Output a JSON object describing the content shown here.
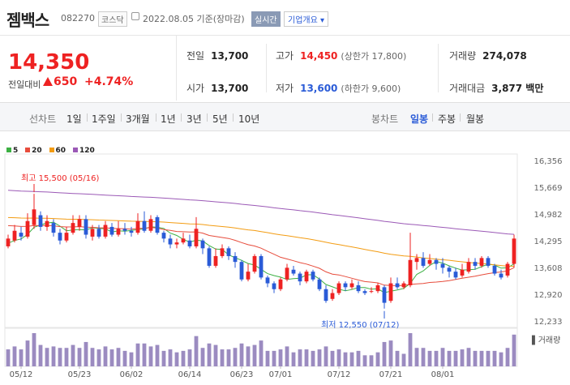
{
  "header": {
    "name": "젬백스",
    "code": "082270",
    "market": "코스닥",
    "date": "2022.08.05 기준(장마감)",
    "realtime": "실시간",
    "corp_info": "기업개요 ▾"
  },
  "price": {
    "current": "14,350",
    "change_label": "전일대비",
    "change": "650",
    "change_pct": "+4.74%"
  },
  "stats": {
    "prev_label": "전일",
    "prev": "13,700",
    "open_label": "시가",
    "open": "13,700",
    "high_label": "고가",
    "high": "14,450",
    "high_sub": "(상한가 17,800)",
    "low_label": "저가",
    "low": "13,600",
    "low_sub": "(하한가 9,600)",
    "volume_label": "거래량",
    "volume": "274,078",
    "amount_label": "거래대금",
    "amount": "3,877 백만"
  },
  "tabs": {
    "line_label": "선차트",
    "line": [
      "1일",
      "1주일",
      "3개월",
      "1년",
      "3년",
      "5년",
      "10년"
    ],
    "candle_label": "봉차트",
    "candle": [
      "일봉",
      "주봉",
      "월봉"
    ],
    "active_candle": "일봉"
  },
  "legend": [
    {
      "label": "5",
      "color": "#3cb043"
    },
    {
      "label": "20",
      "color": "#e74c3c"
    },
    {
      "label": "60",
      "color": "#f39c12"
    },
    {
      "label": "120",
      "color": "#9b59b6"
    }
  ],
  "chart_data": {
    "type": "candlestick",
    "y_ticks": [
      "16,356",
      "15,669",
      "14,982",
      "14,295",
      "13,608",
      "12,920",
      "12,233"
    ],
    "ylim": [
      12233,
      16356
    ],
    "x_ticks": [
      "05/12",
      "05/23",
      "06/02",
      "06/14",
      "06/23",
      "07/01",
      "07/12",
      "07/21",
      "08/01"
    ],
    "annotations": {
      "high": "최고 15,500 (05/16)",
      "low": "최저 12,550 (07/12)"
    },
    "volume_label": "거래량",
    "candles": [
      {
        "o": 14150,
        "c": 14350,
        "h": 14450,
        "l": 14100
      },
      {
        "o": 14300,
        "c": 14550,
        "h": 14700,
        "l": 14250
      },
      {
        "o": 14500,
        "c": 14400,
        "h": 14650,
        "l": 14300
      },
      {
        "o": 14400,
        "c": 14800,
        "h": 15000,
        "l": 14350
      },
      {
        "o": 14700,
        "c": 15100,
        "h": 15500,
        "l": 14600
      },
      {
        "o": 14950,
        "c": 14650,
        "h": 15050,
        "l": 14550
      },
      {
        "o": 14650,
        "c": 14800,
        "h": 14950,
        "l": 14550
      },
      {
        "o": 14750,
        "c": 14500,
        "h": 14850,
        "l": 14400
      },
      {
        "o": 14500,
        "c": 14300,
        "h": 14600,
        "l": 14200
      },
      {
        "o": 14300,
        "c": 14500,
        "h": 14650,
        "l": 14250
      },
      {
        "o": 14500,
        "c": 14750,
        "h": 14950,
        "l": 14450
      },
      {
        "o": 14650,
        "c": 14850,
        "h": 14950,
        "l": 14550
      },
      {
        "o": 14850,
        "c": 14450,
        "h": 14950,
        "l": 14350
      },
      {
        "o": 14400,
        "c": 14600,
        "h": 14700,
        "l": 14300
      },
      {
        "o": 14600,
        "c": 14400,
        "h": 14700,
        "l": 14350
      },
      {
        "o": 14400,
        "c": 14700,
        "h": 14800,
        "l": 14350
      },
      {
        "o": 14650,
        "c": 14450,
        "h": 14750,
        "l": 14400
      },
      {
        "o": 14450,
        "c": 14600,
        "h": 14800,
        "l": 14400
      },
      {
        "o": 14600,
        "c": 14550,
        "h": 14750,
        "l": 14450
      },
      {
        "o": 14550,
        "c": 14500,
        "h": 14650,
        "l": 14400
      },
      {
        "o": 14500,
        "c": 14800,
        "h": 15000,
        "l": 14450
      },
      {
        "o": 14800,
        "c": 14550,
        "h": 15050,
        "l": 14500
      },
      {
        "o": 14550,
        "c": 14850,
        "h": 14950,
        "l": 14500
      },
      {
        "o": 14900,
        "c": 14500,
        "h": 14950,
        "l": 14450
      },
      {
        "o": 14500,
        "c": 14350,
        "h": 14550,
        "l": 14250
      },
      {
        "o": 14350,
        "c": 14200,
        "h": 14450,
        "l": 14100
      },
      {
        "o": 14200,
        "c": 14250,
        "h": 14350,
        "l": 14100
      },
      {
        "o": 14250,
        "c": 14350,
        "h": 14500,
        "l": 14200
      },
      {
        "o": 14300,
        "c": 14150,
        "h": 14450,
        "l": 14100
      },
      {
        "o": 14150,
        "c": 14600,
        "h": 14900,
        "l": 14100
      },
      {
        "o": 14300,
        "c": 14100,
        "h": 14350,
        "l": 13950
      },
      {
        "o": 14100,
        "c": 13650,
        "h": 14150,
        "l": 13600
      },
      {
        "o": 13650,
        "c": 13900,
        "h": 14100,
        "l": 13600
      },
      {
        "o": 13900,
        "c": 14100,
        "h": 14200,
        "l": 13850
      },
      {
        "o": 14100,
        "c": 13900,
        "h": 14150,
        "l": 13800
      },
      {
        "o": 13900,
        "c": 13750,
        "h": 14000,
        "l": 13600
      },
      {
        "o": 13750,
        "c": 13300,
        "h": 13800,
        "l": 13250
      },
      {
        "o": 13300,
        "c": 13500,
        "h": 13700,
        "l": 13250
      },
      {
        "o": 13500,
        "c": 13900,
        "h": 13950,
        "l": 13450
      },
      {
        "o": 13900,
        "c": 13350,
        "h": 13950,
        "l": 13300
      },
      {
        "o": 13350,
        "c": 13200,
        "h": 13400,
        "l": 13100
      },
      {
        "o": 13200,
        "c": 13050,
        "h": 13250,
        "l": 12950
      },
      {
        "o": 13050,
        "c": 13300,
        "h": 13350,
        "l": 13000
      },
      {
        "o": 13300,
        "c": 13600,
        "h": 13700,
        "l": 13250
      },
      {
        "o": 13550,
        "c": 13450,
        "h": 13650,
        "l": 13400
      },
      {
        "o": 13450,
        "c": 13250,
        "h": 13500,
        "l": 13150
      },
      {
        "o": 13250,
        "c": 13500,
        "h": 13550,
        "l": 13200
      },
      {
        "o": 13500,
        "c": 13300,
        "h": 13550,
        "l": 13250
      },
      {
        "o": 13300,
        "c": 13050,
        "h": 13350,
        "l": 13000
      },
      {
        "o": 13050,
        "c": 12750,
        "h": 13150,
        "l": 12700
      },
      {
        "o": 12800,
        "c": 12950,
        "h": 13050,
        "l": 12750
      },
      {
        "o": 12950,
        "c": 13200,
        "h": 13250,
        "l": 12900
      },
      {
        "o": 13200,
        "c": 13100,
        "h": 13250,
        "l": 13000
      },
      {
        "o": 13100,
        "c": 13200,
        "h": 13300,
        "l": 13050
      },
      {
        "o": 13150,
        "c": 13000,
        "h": 13250,
        "l": 12950
      },
      {
        "o": 13000,
        "c": 12950,
        "h": 13050,
        "l": 12900
      },
      {
        "o": 13000,
        "c": 13000,
        "h": 13100,
        "l": 12950
      },
      {
        "o": 13000,
        "c": 13150,
        "h": 13200,
        "l": 12950
      },
      {
        "o": 13100,
        "c": 12700,
        "h": 13150,
        "l": 12550
      },
      {
        "o": 12750,
        "c": 13200,
        "h": 13350,
        "l": 12700
      },
      {
        "o": 13200,
        "c": 13100,
        "h": 13350,
        "l": 13050
      },
      {
        "o": 13100,
        "c": 13200,
        "h": 13250,
        "l": 13050
      },
      {
        "o": 13150,
        "c": 13800,
        "h": 14500,
        "l": 13100
      },
      {
        "o": 13750,
        "c": 13850,
        "h": 13950,
        "l": 13550
      },
      {
        "o": 13850,
        "c": 13650,
        "h": 14000,
        "l": 13600
      },
      {
        "o": 13700,
        "c": 13800,
        "h": 13950,
        "l": 13650
      },
      {
        "o": 13800,
        "c": 13700,
        "h": 13850,
        "l": 13550
      },
      {
        "o": 13700,
        "c": 13600,
        "h": 13850,
        "l": 13450
      },
      {
        "o": 13600,
        "c": 13500,
        "h": 13650,
        "l": 13350
      },
      {
        "o": 13500,
        "c": 13350,
        "h": 13600,
        "l": 13300
      },
      {
        "o": 13400,
        "c": 13550,
        "h": 13700,
        "l": 13350
      },
      {
        "o": 13500,
        "c": 13750,
        "h": 13850,
        "l": 13450
      },
      {
        "o": 13750,
        "c": 13650,
        "h": 13850,
        "l": 13550
      },
      {
        "o": 13650,
        "c": 13850,
        "h": 13900,
        "l": 13600
      },
      {
        "o": 13850,
        "c": 13650,
        "h": 13900,
        "l": 13600
      },
      {
        "o": 13650,
        "c": 13450,
        "h": 13700,
        "l": 13400
      },
      {
        "o": 13450,
        "c": 13350,
        "h": 13550,
        "l": 13300
      },
      {
        "o": 13400,
        "c": 13700,
        "h": 13750,
        "l": 13350
      },
      {
        "o": 13700,
        "c": 14350,
        "h": 14450,
        "l": 13600
      }
    ]
  }
}
